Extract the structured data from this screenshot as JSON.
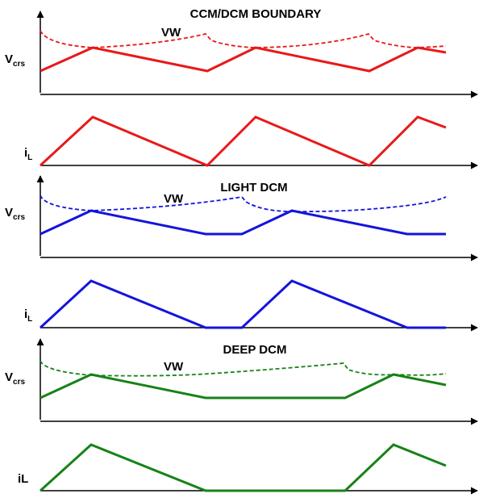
{
  "panels": [
    {
      "id": "ccm",
      "title": "CCM/DCM BOUNDARY",
      "vw_label": "VW",
      "vcrs_label": "V",
      "vcrs_sub": "crs",
      "il_label": "i",
      "il_sub": "L",
      "color": "#e8191a"
    },
    {
      "id": "light",
      "title": "LIGHT DCM",
      "vw_label": "VW",
      "vcrs_label": "V",
      "vcrs_sub": "crs",
      "il_label": "i",
      "il_sub": "L",
      "color": "#1414dc"
    },
    {
      "id": "deep",
      "title": "DEEP DCM",
      "vw_label": "VW",
      "vcrs_label": "V",
      "vcrs_sub": "crs",
      "il_label": "iL",
      "il_sub": "",
      "color": "#178217"
    }
  ]
}
